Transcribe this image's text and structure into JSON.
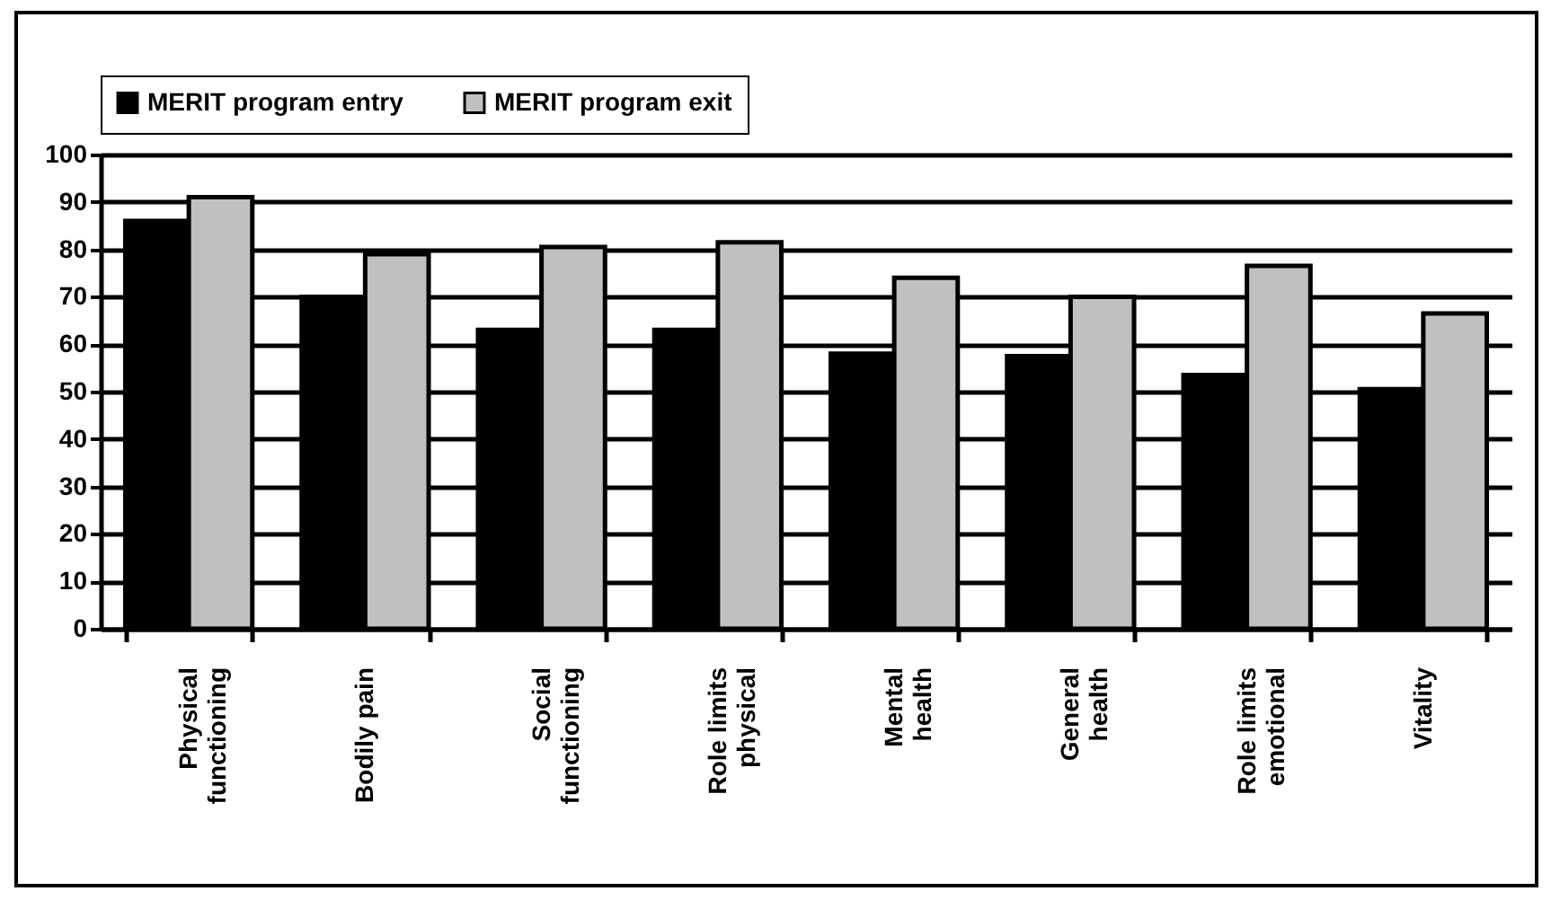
{
  "chart_data": {
    "type": "bar",
    "categories": [
      "Physical\nfunctioning",
      "Bodily pain",
      "Social\nfunctioning",
      "Role limits\nphysical",
      "Mental\nhealth",
      "General\nhealth",
      "Role limits\nemotional",
      "Vitality"
    ],
    "series": [
      {
        "name": "MERIT program entry",
        "color": "#000000",
        "values": [
          86,
          70,
          63,
          63,
          58,
          57.5,
          53.5,
          50.5
        ]
      },
      {
        "name": "MERIT program exit",
        "color": "#c0c0c0",
        "values": [
          91,
          79,
          80.5,
          81.5,
          74,
          70,
          76.5,
          66.5
        ]
      }
    ],
    "ylim": [
      0,
      100
    ],
    "yticks": [
      0,
      10,
      20,
      30,
      40,
      50,
      60,
      70,
      80,
      90,
      100
    ],
    "grid": "y",
    "legend": "top"
  }
}
